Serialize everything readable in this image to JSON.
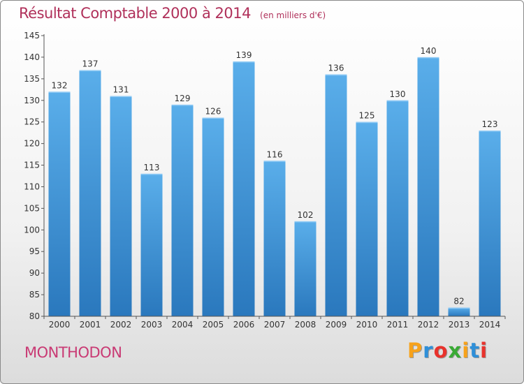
{
  "chart_data": {
    "type": "bar",
    "title": "Résultat Comptable 2000 à 2014",
    "subtitle": "(en milliers d'€)",
    "categories": [
      "2000",
      "2001",
      "2002",
      "2003",
      "2004",
      "2005",
      "2006",
      "2007",
      "2008",
      "2009",
      "2010",
      "2011",
      "2012",
      "2013",
      "2014"
    ],
    "values": [
      132,
      137,
      131,
      113,
      129,
      126,
      139,
      116,
      102,
      136,
      125,
      130,
      140,
      82,
      123
    ],
    "xlabel": "",
    "ylabel": "",
    "ylim": [
      80,
      145
    ],
    "yticks": [
      80,
      85,
      90,
      95,
      100,
      105,
      110,
      115,
      120,
      125,
      130,
      135,
      140,
      145
    ],
    "grid": false,
    "bar_color": "#3a8fd6"
  },
  "footer": {
    "commune": "MONTHODON",
    "logo_text": "Proxiti",
    "logo_colors": [
      "#f7a21b",
      "#2f8fd8",
      "#e8322c",
      "#3aaa35",
      "#f7a21b",
      "#2f8fd8",
      "#e8322c"
    ]
  }
}
